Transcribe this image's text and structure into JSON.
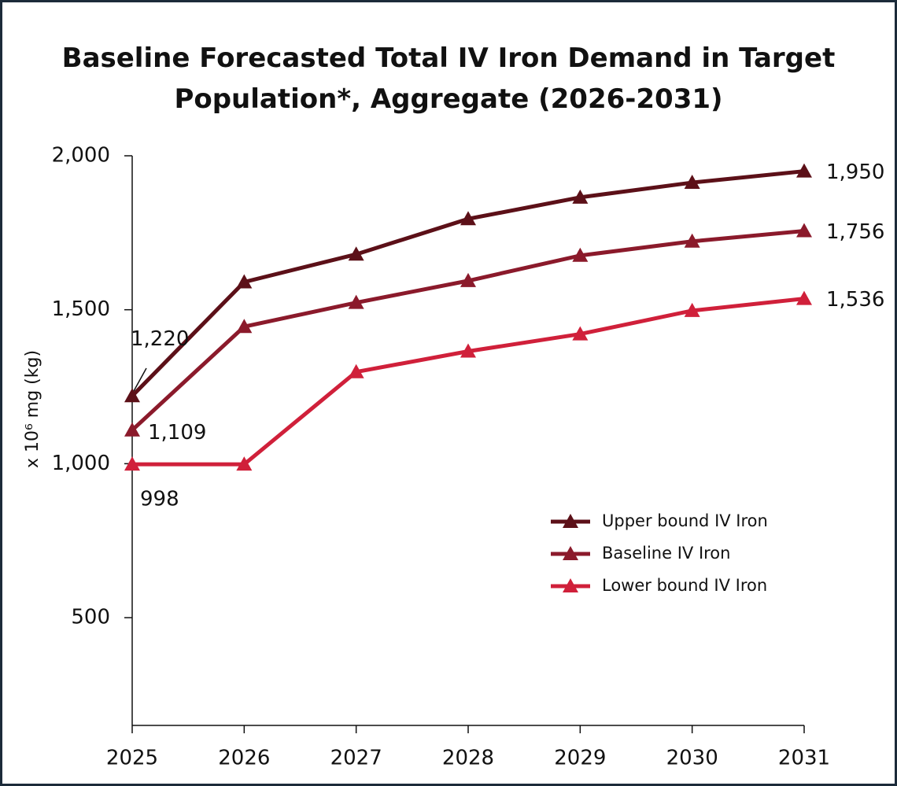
{
  "chart_data": {
    "type": "line",
    "title": "Baseline Forecasted Total IV Iron Demand in Target Population*, Aggregate (2026-2031)",
    "y_label": "x 10⁶ mg (kg)",
    "categories": [
      "2025",
      "2026",
      "2027",
      "2028",
      "2029",
      "2030",
      "2031"
    ],
    "series": [
      {
        "name": "Upper bound IV Iron",
        "color": "#5c1018",
        "values": [
          1220,
          1590,
          1680,
          1795,
          1865,
          1913,
          1950
        ],
        "value_labels": [
          "1,220",
          null,
          null,
          null,
          null,
          null,
          "1,950"
        ]
      },
      {
        "name": "Baseline IV Iron",
        "color": "#8b1a2b",
        "values": [
          1109,
          1445,
          1523,
          1594,
          1676,
          1722,
          1756
        ],
        "value_labels": [
          "1,109",
          null,
          null,
          null,
          null,
          null,
          "1,756"
        ]
      },
      {
        "name": "Lower bound IV Iron",
        "color": "#d0203a",
        "values": [
          998,
          998,
          1298,
          1365,
          1421,
          1497,
          1536
        ],
        "value_labels": [
          "998",
          null,
          null,
          null,
          null,
          null,
          "1,536"
        ]
      }
    ],
    "ylim": [
      150,
      2000
    ],
    "yticks": [
      {
        "value": 500,
        "label": "500"
      },
      {
        "value": 1000,
        "label": "1,000"
      },
      {
        "value": 1500,
        "label": "1,500"
      },
      {
        "value": 2000,
        "label": "2,000"
      }
    ],
    "legend_position": "right"
  }
}
